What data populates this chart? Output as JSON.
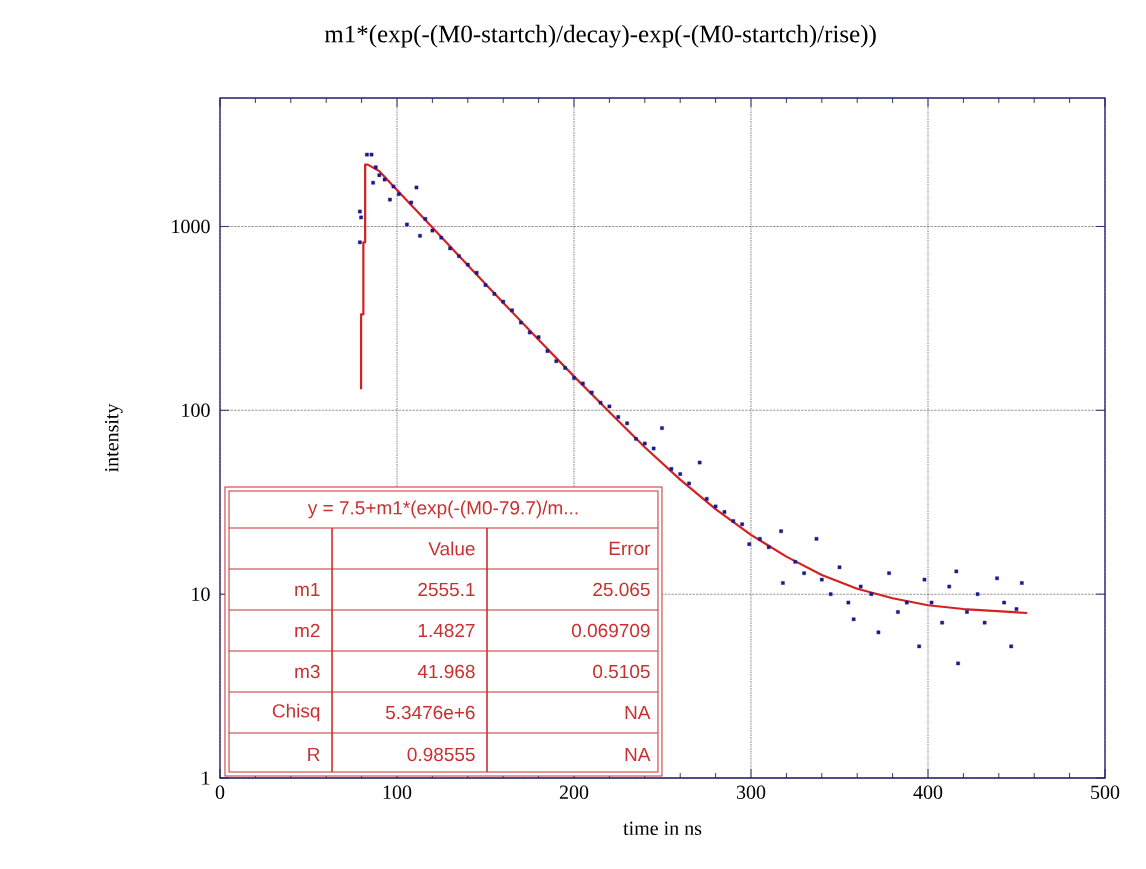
{
  "chart_data": {
    "type": "scatter",
    "title": "m1*(exp(-(M0-startch)/decay)-exp(-(M0-startch)/rise))",
    "xlabel": "time in ns",
    "ylabel": "intensity",
    "xlim": [
      0,
      500
    ],
    "xticks": [
      0,
      100,
      200,
      300,
      400,
      500
    ],
    "ylim": [
      1,
      5000
    ],
    "yticks": [
      1,
      10,
      100,
      1000
    ],
    "log": "y",
    "grid": true,
    "series": [
      {
        "marker": "square",
        "color": "#1a1a8c",
        "x": [
          79,
          79.7,
          79,
          83,
          85.6,
          86.5,
          88,
          90,
          93,
          96,
          98,
          101,
          105.6,
          108,
          111,
          113,
          116,
          120,
          125,
          130,
          135,
          140,
          145,
          150,
          155,
          160,
          165,
          170,
          175,
          180,
          185,
          190,
          195,
          200,
          205,
          210,
          215,
          220,
          225,
          230,
          235,
          240,
          245,
          249.7,
          255,
          260,
          265,
          271,
          275,
          280,
          285,
          290,
          295,
          299,
          305,
          310,
          317,
          318,
          325,
          330,
          337,
          340,
          345,
          350,
          355,
          358,
          362,
          368,
          372,
          378,
          383,
          388,
          395,
          398,
          402,
          408,
          412,
          416,
          417,
          422,
          428,
          432,
          439,
          443,
          447,
          450,
          453
        ],
        "values": [
          1206,
          1120,
          820,
          2460,
          2460,
          1730,
          2100,
          1900,
          1800,
          1400,
          1650,
          1500,
          1025,
          1350,
          1630,
          890,
          1100,
          950,
          870,
          760,
          690,
          620,
          560,
          480,
          430,
          390,
          350,
          300,
          265,
          250,
          210,
          185,
          170,
          150,
          140,
          125,
          110,
          105,
          92,
          85,
          70,
          66,
          62,
          80,
          48,
          45,
          40,
          52,
          33,
          30,
          28,
          25,
          24,
          18.7,
          20,
          18,
          22,
          11.5,
          15,
          13,
          20,
          12,
          10,
          14,
          9,
          7.3,
          11,
          10,
          6.2,
          13,
          8,
          9,
          5.2,
          12,
          9,
          7,
          11,
          13.3,
          4.2,
          8,
          10,
          7,
          12.2,
          9,
          5.2,
          8.3,
          11.5
        ]
      },
      {
        "type": "line",
        "marker": "none",
        "color": "#d42020",
        "x": [
          79.7,
          79.7,
          81,
          81,
          82,
          82,
          83.5,
          90,
          100,
          120,
          140,
          160,
          180,
          200,
          220,
          240,
          260,
          280,
          300,
          320,
          340,
          360,
          380,
          400,
          420,
          456
        ],
        "values": [
          130,
          333,
          333,
          820,
          820,
          2170,
          2170,
          2000,
          1580,
          986,
          615,
          385,
          242,
          153,
          98,
          63,
          42,
          29,
          21,
          16,
          12.7,
          10.7,
          9.5,
          8.7,
          8.3,
          7.9
        ]
      }
    ],
    "annotations": [
      "y = 7.5+m1*(exp(-(M0-79.7)/m...",
      "Value",
      "Error",
      "m1",
      "2555.1",
      "25.065",
      "m2",
      "1.4827",
      "0.069709",
      "m3",
      "41.968",
      "0.5105",
      "Chisq",
      "5.3476e+6",
      "NA",
      "R",
      "0.98555",
      "NA"
    ]
  }
}
